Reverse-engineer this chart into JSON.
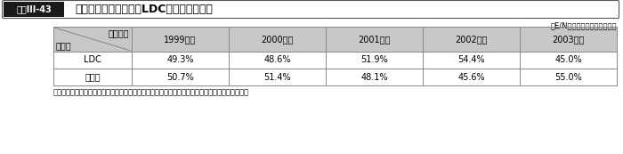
{
  "title_box": "図表III-43",
  "title_text": "一般無償資金協力等のLDC等への配分実績",
  "subtitle": "（E/Nベース）（シェア：％）",
  "header_row1": "会計年度",
  "header_row2": "区　分",
  "col_headers": [
    "1999年度",
    "2000年度",
    "2001年度",
    "2002年度",
    "2003年度"
  ],
  "row_labels": [
    "LDC",
    "その他"
  ],
  "data": [
    [
      "49.3%",
      "48.6%",
      "51.9%",
      "54.4%",
      "45.0%"
    ],
    [
      "50.7%",
      "51.4%",
      "48.1%",
      "45.6%",
      "55.0%"
    ]
  ],
  "note": "注：債務救済を含む。一般プロジェクト、債務救済、ノンプロ、水産無償についての合計を分類。",
  "bg_color": "#ffffff",
  "header_bg": "#c8c8c8",
  "title_dark_bg": "#1a1a1a",
  "title_dark_fg": "#ffffff",
  "grid_color": "#888888",
  "figsize": [
    7.0,
    1.73
  ],
  "dpi": 100
}
